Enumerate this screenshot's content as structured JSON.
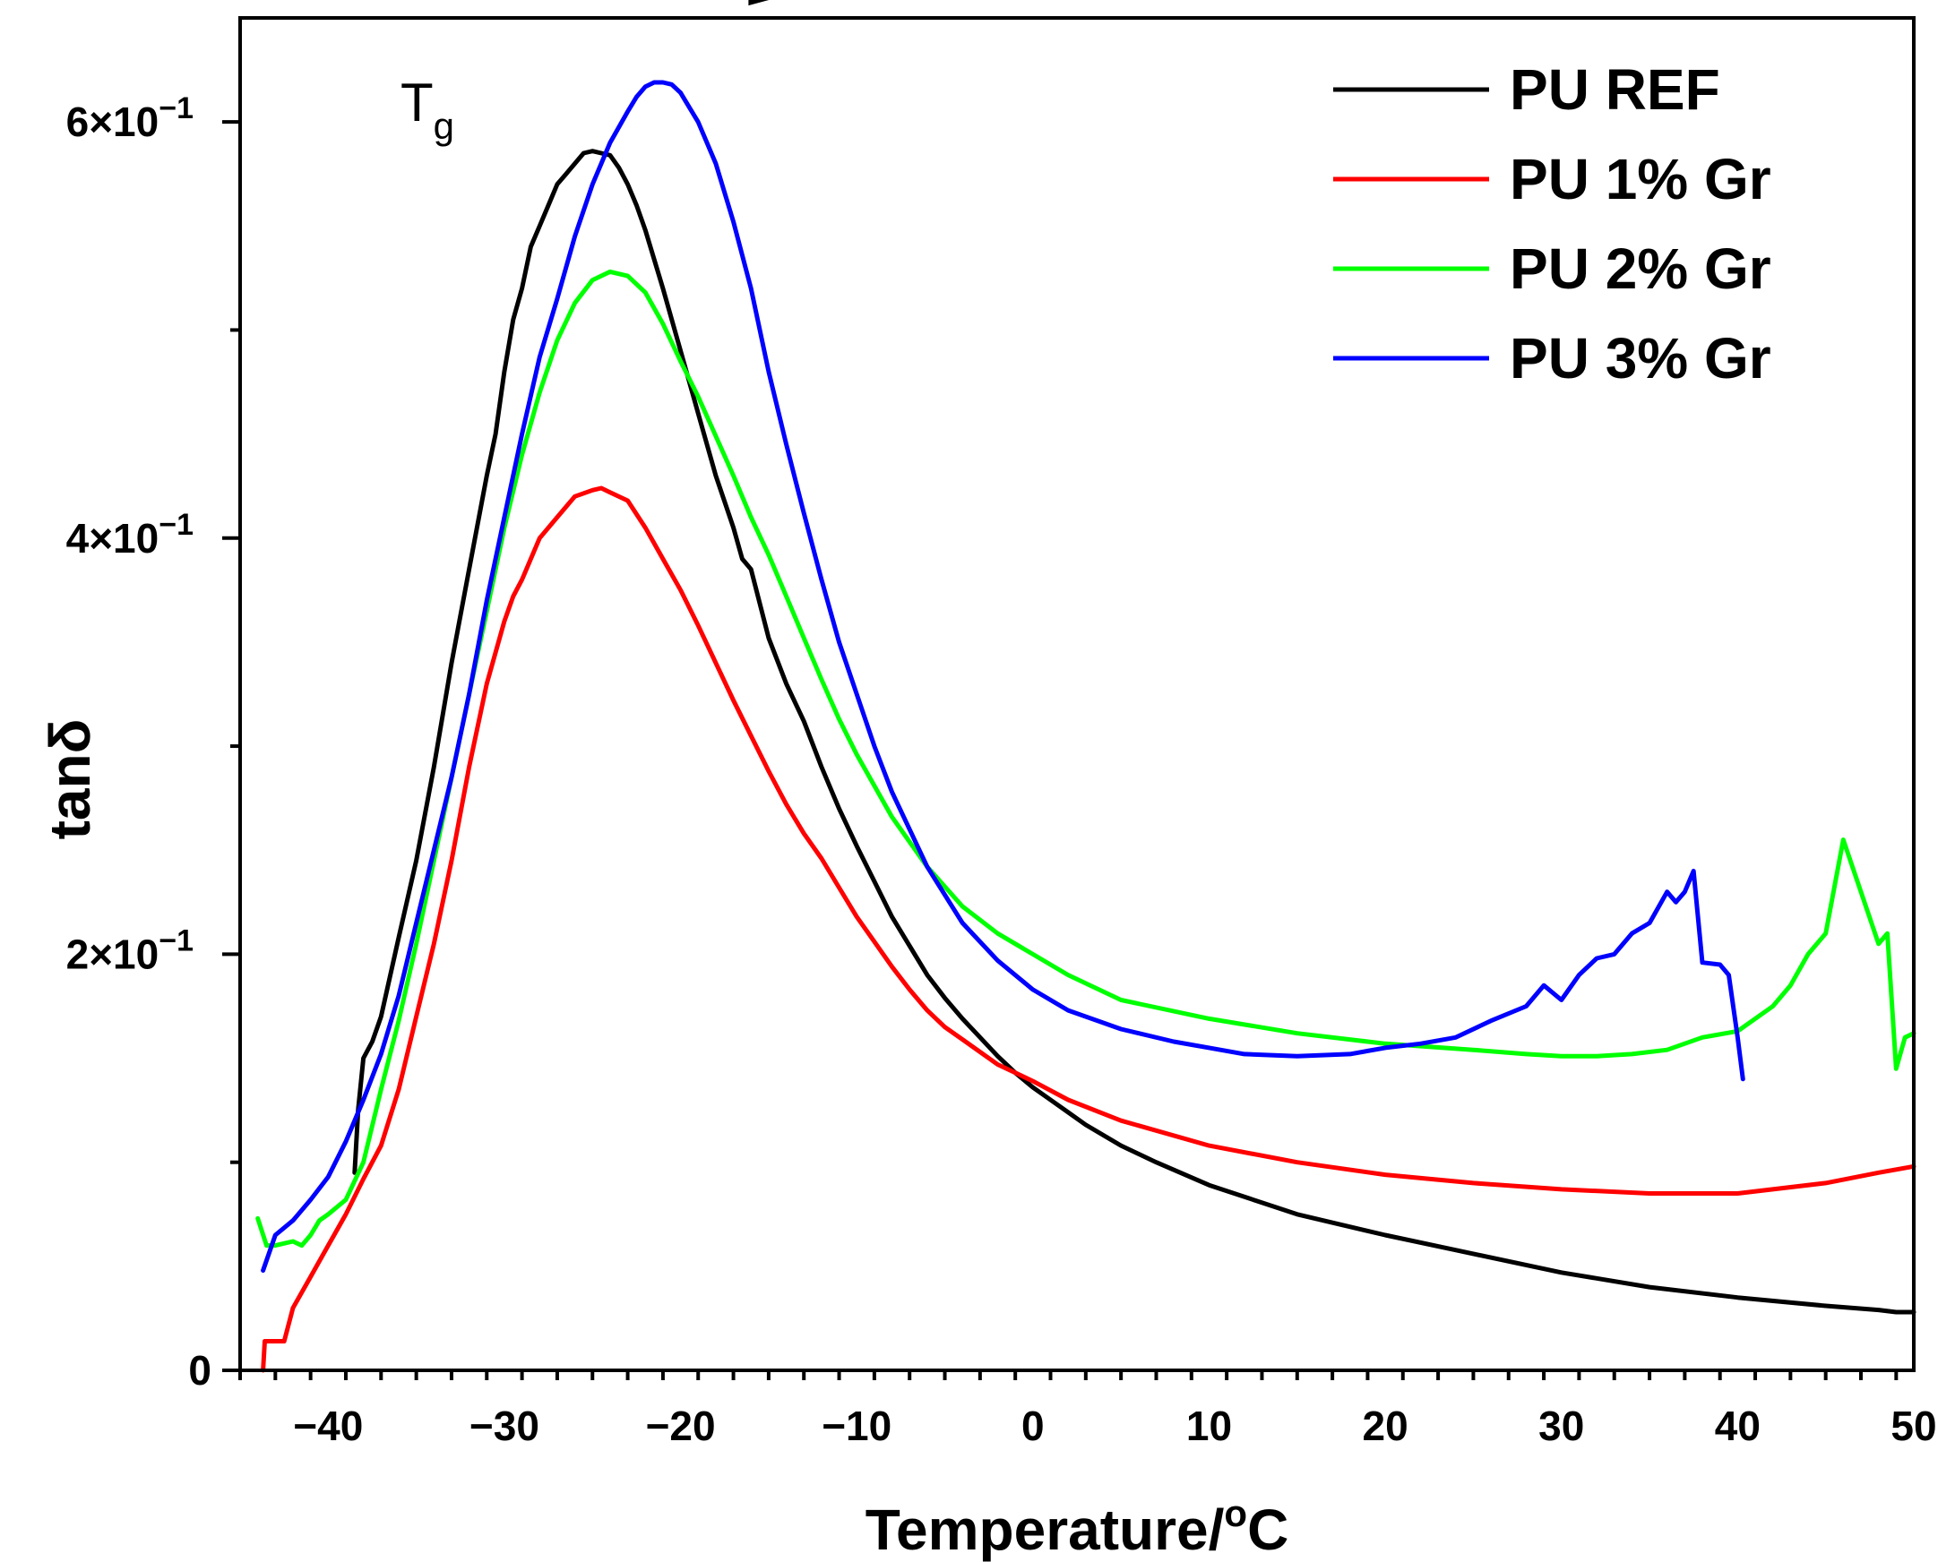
{
  "chart_data": {
    "type": "line",
    "title": "",
    "xlabel": "Temperature/",
    "xlabel_sup": "o",
    "xlabel_unit": "C",
    "ylabel": "tanδ",
    "xlim": [
      -45,
      50
    ],
    "ylim": [
      0,
      0.65
    ],
    "x_ticks": [
      {
        "value": -40,
        "label": "−40"
      },
      {
        "value": -30,
        "label": "−30"
      },
      {
        "value": -20,
        "label": "−20"
      },
      {
        "value": -10,
        "label": "−10"
      },
      {
        "value": 0,
        "label": "0"
      },
      {
        "value": 10,
        "label": "10"
      },
      {
        "value": 20,
        "label": "20"
      },
      {
        "value": 30,
        "label": "30"
      },
      {
        "value": 40,
        "label": "40"
      },
      {
        "value": 50,
        "label": "50"
      }
    ],
    "y_ticks": [
      {
        "value": 0,
        "label": "0"
      },
      {
        "value": 0.2,
        "label": "2×10"
      },
      {
        "value": 0.4,
        "label": "4×10"
      },
      {
        "value": 0.6,
        "label": "6×10"
      }
    ],
    "y_tick_exponent": "−1",
    "y_minor_ticks": [
      0.1,
      0.3,
      0.5
    ],
    "annotation": {
      "main": "T",
      "sub": "g",
      "x_start": -32.5,
      "x_end": -13.5,
      "y": 0.662
    },
    "legend_position": "top-right",
    "series": [
      {
        "name": "PU REF",
        "color": "#000000",
        "x": [
          -38.5,
          -38.3,
          -38,
          -37.5,
          -37,
          -36,
          -35,
          -34,
          -33,
          -32,
          -31,
          -30.5,
          -30,
          -29.5,
          -29,
          -28.5,
          -28,
          -27.5,
          -27,
          -26.5,
          -26,
          -25.5,
          -25,
          -24.5,
          -24,
          -23.5,
          -23,
          -22.5,
          -22,
          -21,
          -20,
          -19,
          -18,
          -17,
          -16.5,
          -16,
          -15,
          -14,
          -13,
          -12,
          -11,
          -10,
          -9,
          -8,
          -7,
          -6,
          -5,
          -4,
          -3,
          -2,
          -1,
          0,
          1,
          2,
          3,
          5,
          7,
          10,
          15,
          20,
          25,
          30,
          35,
          40,
          45,
          48,
          49,
          50
        ],
        "y": [
          0.095,
          0.125,
          0.15,
          0.158,
          0.17,
          0.208,
          0.245,
          0.29,
          0.34,
          0.385,
          0.43,
          0.45,
          0.48,
          0.505,
          0.52,
          0.54,
          0.55,
          0.56,
          0.57,
          0.575,
          0.58,
          0.585,
          0.586,
          0.585,
          0.584,
          0.578,
          0.57,
          0.56,
          0.548,
          0.52,
          0.49,
          0.46,
          0.43,
          0.405,
          0.39,
          0.385,
          0.352,
          0.33,
          0.312,
          0.29,
          0.27,
          0.252,
          0.235,
          0.218,
          0.204,
          0.19,
          0.179,
          0.169,
          0.16,
          0.151,
          0.143,
          0.136,
          0.13,
          0.124,
          0.118,
          0.108,
          0.1,
          0.089,
          0.075,
          0.065,
          0.056,
          0.047,
          0.04,
          0.035,
          0.031,
          0.029,
          0.028,
          0.028
        ]
      },
      {
        "name": "PU 1% Gr",
        "color": "#ff0000",
        "x": [
          -43.7,
          -43.6,
          -43,
          -42.5,
          -42,
          -41,
          -40,
          -39,
          -38,
          -37,
          -36,
          -35,
          -34,
          -33,
          -32,
          -31,
          -30,
          -29.5,
          -29,
          -28,
          -27,
          -26,
          -25,
          -24.5,
          -24,
          -23,
          -22,
          -21,
          -20,
          -19,
          -18,
          -17,
          -16,
          -15,
          -14,
          -13,
          -12,
          -11,
          -10,
          -9,
          -8,
          -7,
          -6,
          -5,
          -4,
          -3,
          -2,
          -1,
          0,
          2,
          5,
          10,
          15,
          20,
          25,
          30,
          35,
          40,
          45,
          48,
          50
        ],
        "y": [
          0.0,
          0.014,
          0.014,
          0.014,
          0.03,
          0.045,
          0.06,
          0.075,
          0.092,
          0.108,
          0.135,
          0.17,
          0.205,
          0.245,
          0.29,
          0.33,
          0.36,
          0.372,
          0.38,
          0.4,
          0.41,
          0.42,
          0.423,
          0.424,
          0.422,
          0.418,
          0.405,
          0.39,
          0.375,
          0.358,
          0.34,
          0.322,
          0.305,
          0.288,
          0.272,
          0.258,
          0.246,
          0.232,
          0.218,
          0.206,
          0.194,
          0.183,
          0.173,
          0.165,
          0.159,
          0.153,
          0.147,
          0.143,
          0.139,
          0.13,
          0.12,
          0.108,
          0.1,
          0.094,
          0.09,
          0.087,
          0.085,
          0.085,
          0.09,
          0.095,
          0.098
        ]
      },
      {
        "name": "PU 2% Gr",
        "color": "#00ff00",
        "x": [
          -44,
          -43.5,
          -43,
          -42,
          -41.5,
          -41,
          -40.5,
          -40,
          -39,
          -38,
          -37,
          -36,
          -35,
          -34,
          -33,
          -32,
          -31,
          -30,
          -29,
          -28,
          -27,
          -26,
          -25,
          -24,
          -23,
          -22,
          -21,
          -20,
          -19,
          -18,
          -17,
          -16,
          -15,
          -14,
          -13,
          -12,
          -11,
          -10,
          -8,
          -6,
          -4,
          -2,
          0,
          2,
          5,
          10,
          15,
          20,
          25,
          28,
          30,
          32,
          34,
          36,
          38,
          40,
          42,
          43,
          44,
          45,
          46,
          47,
          48,
          48.5,
          49,
          49.5,
          50
        ],
        "y": [
          0.073,
          0.06,
          0.06,
          0.062,
          0.06,
          0.065,
          0.072,
          0.075,
          0.082,
          0.1,
          0.135,
          0.168,
          0.205,
          0.245,
          0.285,
          0.325,
          0.365,
          0.405,
          0.44,
          0.47,
          0.495,
          0.513,
          0.524,
          0.528,
          0.526,
          0.518,
          0.503,
          0.485,
          0.468,
          0.449,
          0.43,
          0.41,
          0.392,
          0.372,
          0.352,
          0.332,
          0.313,
          0.296,
          0.266,
          0.242,
          0.223,
          0.21,
          0.2,
          0.19,
          0.178,
          0.169,
          0.162,
          0.157,
          0.154,
          0.152,
          0.151,
          0.151,
          0.152,
          0.154,
          0.16,
          0.163,
          0.175,
          0.185,
          0.2,
          0.21,
          0.255,
          0.23,
          0.205,
          0.21,
          0.145,
          0.16,
          0.162
        ]
      },
      {
        "name": "PU 3% Gr",
        "color": "#0000ff",
        "x": [
          -43.7,
          -43,
          -42,
          -41,
          -40,
          -39,
          -38,
          -37,
          -36,
          -35,
          -34,
          -33,
          -32,
          -31,
          -30,
          -29,
          -28,
          -27,
          -26,
          -25,
          -24.5,
          -24,
          -23,
          -22.5,
          -22,
          -21.5,
          -21,
          -20.5,
          -20,
          -19,
          -18,
          -17,
          -16,
          -15,
          -14,
          -13,
          -12,
          -11,
          -10,
          -9,
          -8,
          -6,
          -4,
          -2,
          0,
          2,
          5,
          8,
          10,
          12,
          15,
          18,
          20,
          22,
          24,
          26,
          28,
          29,
          30,
          31,
          32,
          33,
          34,
          35,
          36,
          36.5,
          37,
          37.5,
          38,
          39,
          39.5,
          40,
          40.3
        ],
        "y": [
          0.048,
          0.065,
          0.072,
          0.082,
          0.093,
          0.11,
          0.13,
          0.152,
          0.18,
          0.215,
          0.25,
          0.285,
          0.325,
          0.37,
          0.41,
          0.45,
          0.487,
          0.515,
          0.545,
          0.57,
          0.58,
          0.59,
          0.605,
          0.612,
          0.617,
          0.619,
          0.619,
          0.618,
          0.614,
          0.6,
          0.58,
          0.552,
          0.52,
          0.48,
          0.445,
          0.412,
          0.38,
          0.35,
          0.325,
          0.3,
          0.278,
          0.242,
          0.215,
          0.197,
          0.183,
          0.173,
          0.164,
          0.158,
          0.155,
          0.152,
          0.151,
          0.152,
          0.155,
          0.157,
          0.16,
          0.168,
          0.175,
          0.185,
          0.178,
          0.19,
          0.198,
          0.2,
          0.21,
          0.215,
          0.23,
          0.225,
          0.23,
          0.24,
          0.196,
          0.195,
          0.19,
          0.16,
          0.14
        ]
      }
    ]
  }
}
